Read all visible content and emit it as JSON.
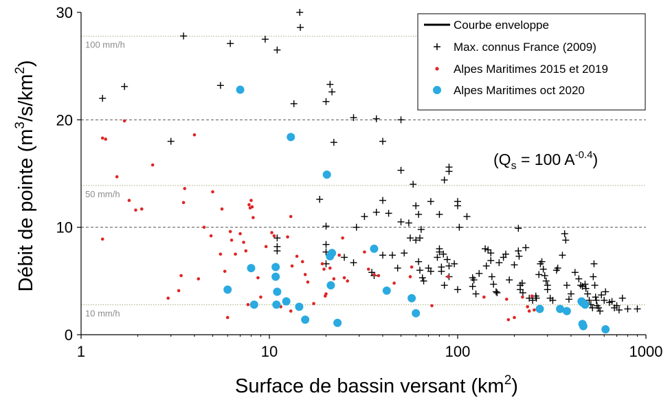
{
  "chart_data": {
    "type": "scatter",
    "x_scale": "log",
    "xlim": [
      1,
      1000
    ],
    "ylim": [
      0,
      30
    ],
    "x_ticks": [
      "1",
      "10",
      "100",
      "1000"
    ],
    "y_ticks": [
      "0",
      "10",
      "20",
      "30"
    ],
    "xlabel": "Surface de bassin versant (km",
    "xlabel_sup": "2",
    "xlabel_end": ")",
    "ylabel": "Débit de pointe (m",
    "ylabel_sup": "3",
    "ylabel_mid": "/s/km",
    "ylabel_sup2": "2",
    "ylabel_end": ")",
    "grid": "dashed horizontal at 10 and 20",
    "legend_position": "top-right",
    "reference_lines": [
      {
        "label": "100 mm/h",
        "y": 27.78
      },
      {
        "label": "50 mm/h",
        "y": 13.89
      },
      {
        "label": "10 mm/h",
        "y": 2.78
      }
    ],
    "annotation": {
      "prefix": "(Q",
      "sub": "s",
      "mid": " = 100 A",
      "sup": "-0.4",
      "suffix": ")"
    },
    "envelope": {
      "name": "Courbe enveloppe",
      "formula": "100*x^-0.4",
      "x_range": [
        20,
        1000
      ],
      "color": "#000000"
    },
    "series": [
      {
        "name": "Max. connus France (2009)",
        "marker": "plus",
        "color": "#000000",
        "points": [
          [
            1.3,
            22
          ],
          [
            1.7,
            23.1
          ],
          [
            3,
            18
          ],
          [
            3.5,
            27.8
          ],
          [
            5.5,
            23.2
          ],
          [
            6.2,
            27.1
          ],
          [
            9.5,
            27.5
          ],
          [
            11,
            26.5
          ],
          [
            14.5,
            30
          ],
          [
            14.6,
            28.6
          ],
          [
            13.5,
            21.5
          ],
          [
            20,
            21.7
          ],
          [
            21,
            23.3
          ],
          [
            21.5,
            22.6
          ],
          [
            22,
            17.9
          ],
          [
            28,
            20.2
          ],
          [
            37,
            20.1
          ],
          [
            40,
            18
          ],
          [
            50,
            20
          ],
          [
            50,
            15.3
          ],
          [
            58,
            14
          ],
          [
            18.5,
            12.6
          ],
          [
            20,
            10.1
          ],
          [
            29,
            10
          ],
          [
            32,
            11
          ],
          [
            37,
            11.4
          ],
          [
            40,
            12.5
          ],
          [
            43,
            11.3
          ],
          [
            50,
            10.5
          ],
          [
            55,
            10.4
          ],
          [
            60,
            12
          ],
          [
            62,
            11.2
          ],
          [
            63,
            9
          ],
          [
            64,
            9.8
          ],
          [
            72,
            12.4
          ],
          [
            80,
            11.2
          ],
          [
            85,
            14.4
          ],
          [
            90,
            15.2
          ],
          [
            90,
            15.6
          ],
          [
            100,
            12.4
          ],
          [
            100,
            12
          ],
          [
            102,
            10
          ],
          [
            112,
            11
          ],
          [
            11,
            9
          ],
          [
            11,
            8.2
          ],
          [
            11,
            7.8
          ],
          [
            20,
            8.4
          ],
          [
            20,
            7.7
          ],
          [
            20,
            6.6
          ],
          [
            25,
            7.2
          ],
          [
            28,
            6.7
          ],
          [
            35,
            5.8
          ],
          [
            36,
            5.5
          ],
          [
            40,
            7.4
          ],
          [
            45,
            7.4
          ],
          [
            48,
            6.2
          ],
          [
            52,
            7.6
          ],
          [
            56,
            9
          ],
          [
            60,
            8.8
          ],
          [
            62,
            6.8
          ],
          [
            63,
            6
          ],
          [
            65,
            5.3
          ],
          [
            66,
            5
          ],
          [
            70,
            6.2
          ],
          [
            72,
            5.9
          ],
          [
            78,
            7.2
          ],
          [
            80,
            8
          ],
          [
            80,
            7.7
          ],
          [
            82,
            6.3
          ],
          [
            82,
            5.9
          ],
          [
            84,
            7.5
          ],
          [
            85,
            4.6
          ],
          [
            88,
            7
          ],
          [
            90,
            5.4
          ],
          [
            90,
            6.4
          ],
          [
            96,
            6.6
          ],
          [
            100,
            4.2
          ],
          [
            120,
            5.3
          ],
          [
            120,
            4.5
          ],
          [
            122,
            5.1
          ],
          [
            125,
            3.8
          ],
          [
            130,
            5.7
          ],
          [
            140,
            8
          ],
          [
            142,
            6.4
          ],
          [
            145,
            7.9
          ],
          [
            150,
            7.6
          ],
          [
            150,
            6.9
          ],
          [
            152,
            5.4
          ],
          [
            155,
            4.7
          ],
          [
            160,
            4
          ],
          [
            162,
            3.9
          ],
          [
            166,
            6.7
          ],
          [
            175,
            7.2
          ],
          [
            180,
            7.5
          ],
          [
            188,
            5.1
          ],
          [
            200,
            6.5
          ],
          [
            210,
            9.9
          ],
          [
            210,
            7.8
          ],
          [
            212,
            7.3
          ],
          [
            215,
            4.6
          ],
          [
            215,
            4.2
          ],
          [
            220,
            4.8
          ],
          [
            222,
            3.9
          ],
          [
            230,
            8.1
          ],
          [
            240,
            3.4
          ],
          [
            250,
            3.2
          ],
          [
            260,
            3.6
          ],
          [
            262,
            3.4
          ],
          [
            270,
            5.6
          ],
          [
            275,
            6.6
          ],
          [
            280,
            6.8
          ],
          [
            285,
            6.1
          ],
          [
            290,
            5.5
          ],
          [
            295,
            5
          ],
          [
            300,
            4.6
          ],
          [
            300,
            4.2
          ],
          [
            310,
            3.4
          ],
          [
            320,
            3.2
          ],
          [
            335,
            6
          ],
          [
            340,
            6.2
          ],
          [
            360,
            7.4
          ],
          [
            370,
            9.4
          ],
          [
            375,
            8.8
          ],
          [
            380,
            4.6
          ],
          [
            390,
            3.3
          ],
          [
            400,
            3.8
          ],
          [
            420,
            5.8
          ],
          [
            440,
            5.2
          ],
          [
            450,
            4.6
          ],
          [
            460,
            4.5
          ],
          [
            475,
            4.7
          ],
          [
            480,
            4.3
          ],
          [
            490,
            3.8
          ],
          [
            500,
            3.2
          ],
          [
            510,
            2.8
          ],
          [
            520,
            2.5
          ],
          [
            525,
            5.4
          ],
          [
            530,
            6.6
          ],
          [
            535,
            4.6
          ],
          [
            540,
            3.5
          ],
          [
            545,
            3.2
          ],
          [
            550,
            2.7
          ],
          [
            560,
            2.5
          ],
          [
            570,
            2.2
          ],
          [
            580,
            3.7
          ],
          [
            600,
            3.2
          ],
          [
            610,
            4
          ],
          [
            640,
            3
          ],
          [
            660,
            3.1
          ],
          [
            680,
            2.5
          ],
          [
            700,
            2.7
          ],
          [
            720,
            2.3
          ],
          [
            750,
            3.4
          ],
          [
            800,
            2.4
          ],
          [
            900,
            2.4
          ]
        ]
      },
      {
        "name": "Alpes Maritimes 2015 et 2019",
        "marker": "dot",
        "color": "#e02424",
        "points": [
          [
            1.3,
            18.3
          ],
          [
            1.35,
            18.2
          ],
          [
            1.3,
            8.9
          ],
          [
            1.55,
            14.7
          ],
          [
            1.7,
            19.9
          ],
          [
            1.8,
            12.5
          ],
          [
            1.95,
            11.6
          ],
          [
            2.1,
            11.7
          ],
          [
            2.4,
            15.8
          ],
          [
            2.9,
            3.4
          ],
          [
            3.3,
            4.1
          ],
          [
            3.4,
            5.5
          ],
          [
            3.5,
            12.3
          ],
          [
            3.55,
            13.6
          ],
          [
            4,
            18.6
          ],
          [
            4.2,
            5.2
          ],
          [
            4.5,
            10
          ],
          [
            4.9,
            9.2
          ],
          [
            5,
            13.3
          ],
          [
            5.5,
            7.5
          ],
          [
            5.6,
            11.7
          ],
          [
            5.8,
            5.9
          ],
          [
            6,
            1.6
          ],
          [
            6.2,
            9.6
          ],
          [
            6.3,
            8.8
          ],
          [
            6.6,
            7.5
          ],
          [
            7,
            9.4
          ],
          [
            7.3,
            8.6
          ],
          [
            7.5,
            7.8
          ],
          [
            7.7,
            2.8
          ],
          [
            7.8,
            12.1
          ],
          [
            7.9,
            11.8
          ],
          [
            8,
            12.5
          ],
          [
            8.1,
            11.9
          ],
          [
            8.2,
            10.9
          ],
          [
            8.7,
            5.3
          ],
          [
            9,
            3.5
          ],
          [
            9.6,
            8.2
          ],
          [
            10.3,
            9.5
          ],
          [
            10.5,
            6.4
          ],
          [
            10.6,
            9.2
          ],
          [
            11.5,
            2.6
          ],
          [
            12.5,
            9.1
          ],
          [
            13,
            11
          ],
          [
            13.2,
            6.4
          ],
          [
            13,
            2.2
          ],
          [
            14,
            7.3
          ],
          [
            15,
            6.8
          ],
          [
            15.5,
            5.6
          ],
          [
            16,
            4.9
          ],
          [
            17.2,
            2.9
          ],
          [
            19.1,
            6.6
          ],
          [
            19.5,
            6.1
          ],
          [
            19.8,
            3.6
          ],
          [
            20,
            3.8
          ],
          [
            21,
            6.2
          ],
          [
            22,
            5.2
          ],
          [
            23.5,
            7.4
          ],
          [
            24.5,
            9
          ],
          [
            25,
            5.3
          ],
          [
            26,
            5
          ],
          [
            32,
            7.7
          ],
          [
            33.6,
            6.1
          ],
          [
            36,
            5.6
          ],
          [
            38,
            5.5
          ],
          [
            46,
            4.8
          ],
          [
            56,
            5.4
          ],
          [
            57,
            6.3
          ],
          [
            73,
            2.7
          ],
          [
            89,
            5.4
          ],
          [
            138,
            3.5
          ],
          [
            182,
            3.3
          ],
          [
            186,
            1.4
          ],
          [
            200,
            1.6
          ],
          [
            221,
            3.5
          ],
          [
            235,
            2.6
          ],
          [
            240,
            2.2
          ],
          [
            248,
            3.6
          ],
          [
            255,
            2.3
          ]
        ]
      },
      {
        "name": "Alpes Maritimes oct 2020",
        "marker": "circle",
        "color": "#2aaae0",
        "points": [
          [
            6,
            4.2
          ],
          [
            7,
            22.8
          ],
          [
            8,
            6.2
          ],
          [
            8.3,
            2.8
          ],
          [
            10.8,
            6.3
          ],
          [
            10.8,
            5.4
          ],
          [
            10.9,
            2.8
          ],
          [
            11,
            4
          ],
          [
            12.3,
            3.1
          ],
          [
            13,
            18.4
          ],
          [
            14.4,
            2.6
          ],
          [
            15.5,
            1.4
          ],
          [
            20.2,
            14.9
          ],
          [
            21,
            7.3
          ],
          [
            21.2,
            4.6
          ],
          [
            21.5,
            7.6
          ],
          [
            23,
            1.1
          ],
          [
            36,
            8
          ],
          [
            42,
            4.1
          ],
          [
            57,
            3.4
          ],
          [
            60,
            2
          ],
          [
            273,
            2.4
          ],
          [
            350,
            2.4
          ],
          [
            380,
            2.2
          ],
          [
            455,
            3.1
          ],
          [
            460,
            3
          ],
          [
            475,
            2.8
          ],
          [
            460,
            1
          ],
          [
            465,
            0.8
          ],
          [
            610,
            0.5
          ]
        ]
      }
    ]
  }
}
